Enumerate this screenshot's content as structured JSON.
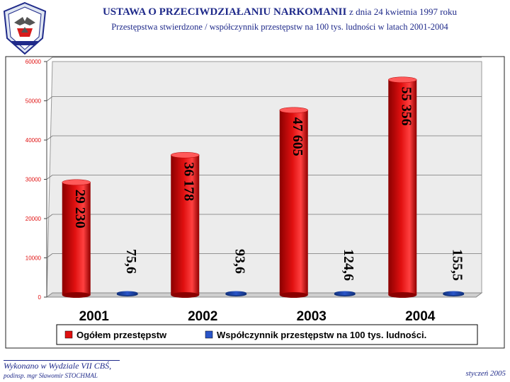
{
  "header": {
    "title": "USTAWA O PRZECIWDZIAŁANIU NARKOMANII",
    "title_date": "z dnia 24 kwietnia 1997 roku",
    "subtitle": "Przestępstwa stwierdzone / współczynnik przestępstw na 100 tys. ludności w latach 2001-2004"
  },
  "footer": {
    "author_line1": "Wykonano w Wydziale VII CBŚ,",
    "author_line2": "podinsp. mgr Sławomir STOCHMAL",
    "date": "styczeń 2005"
  },
  "colors": {
    "series1": "#e01010",
    "series2": "#2a55c8",
    "title": "#1f2a8a",
    "plot_background": "#ececec"
  },
  "chart_data": {
    "type": "bar",
    "categories": [
      "2001",
      "2002",
      "2003",
      "2004"
    ],
    "series": [
      {
        "name": "Ogółem przestępstw",
        "values": [
          29230,
          36178,
          47605,
          55356
        ],
        "labels": [
          "29 230",
          "36 178",
          "47 605",
          "55 356"
        ]
      },
      {
        "name": "Współczynnik przestępstw na 100 tys. ludności.",
        "values": [
          75.6,
          93.6,
          124.6,
          155.5
        ],
        "labels": [
          "75,6",
          "93,6",
          "124,6",
          "155,5"
        ]
      }
    ],
    "ylim": [
      0,
      60000
    ],
    "yticks": [
      0,
      10000,
      20000,
      30000,
      40000,
      50000,
      60000
    ],
    "grid": true,
    "legend": "bottom"
  }
}
